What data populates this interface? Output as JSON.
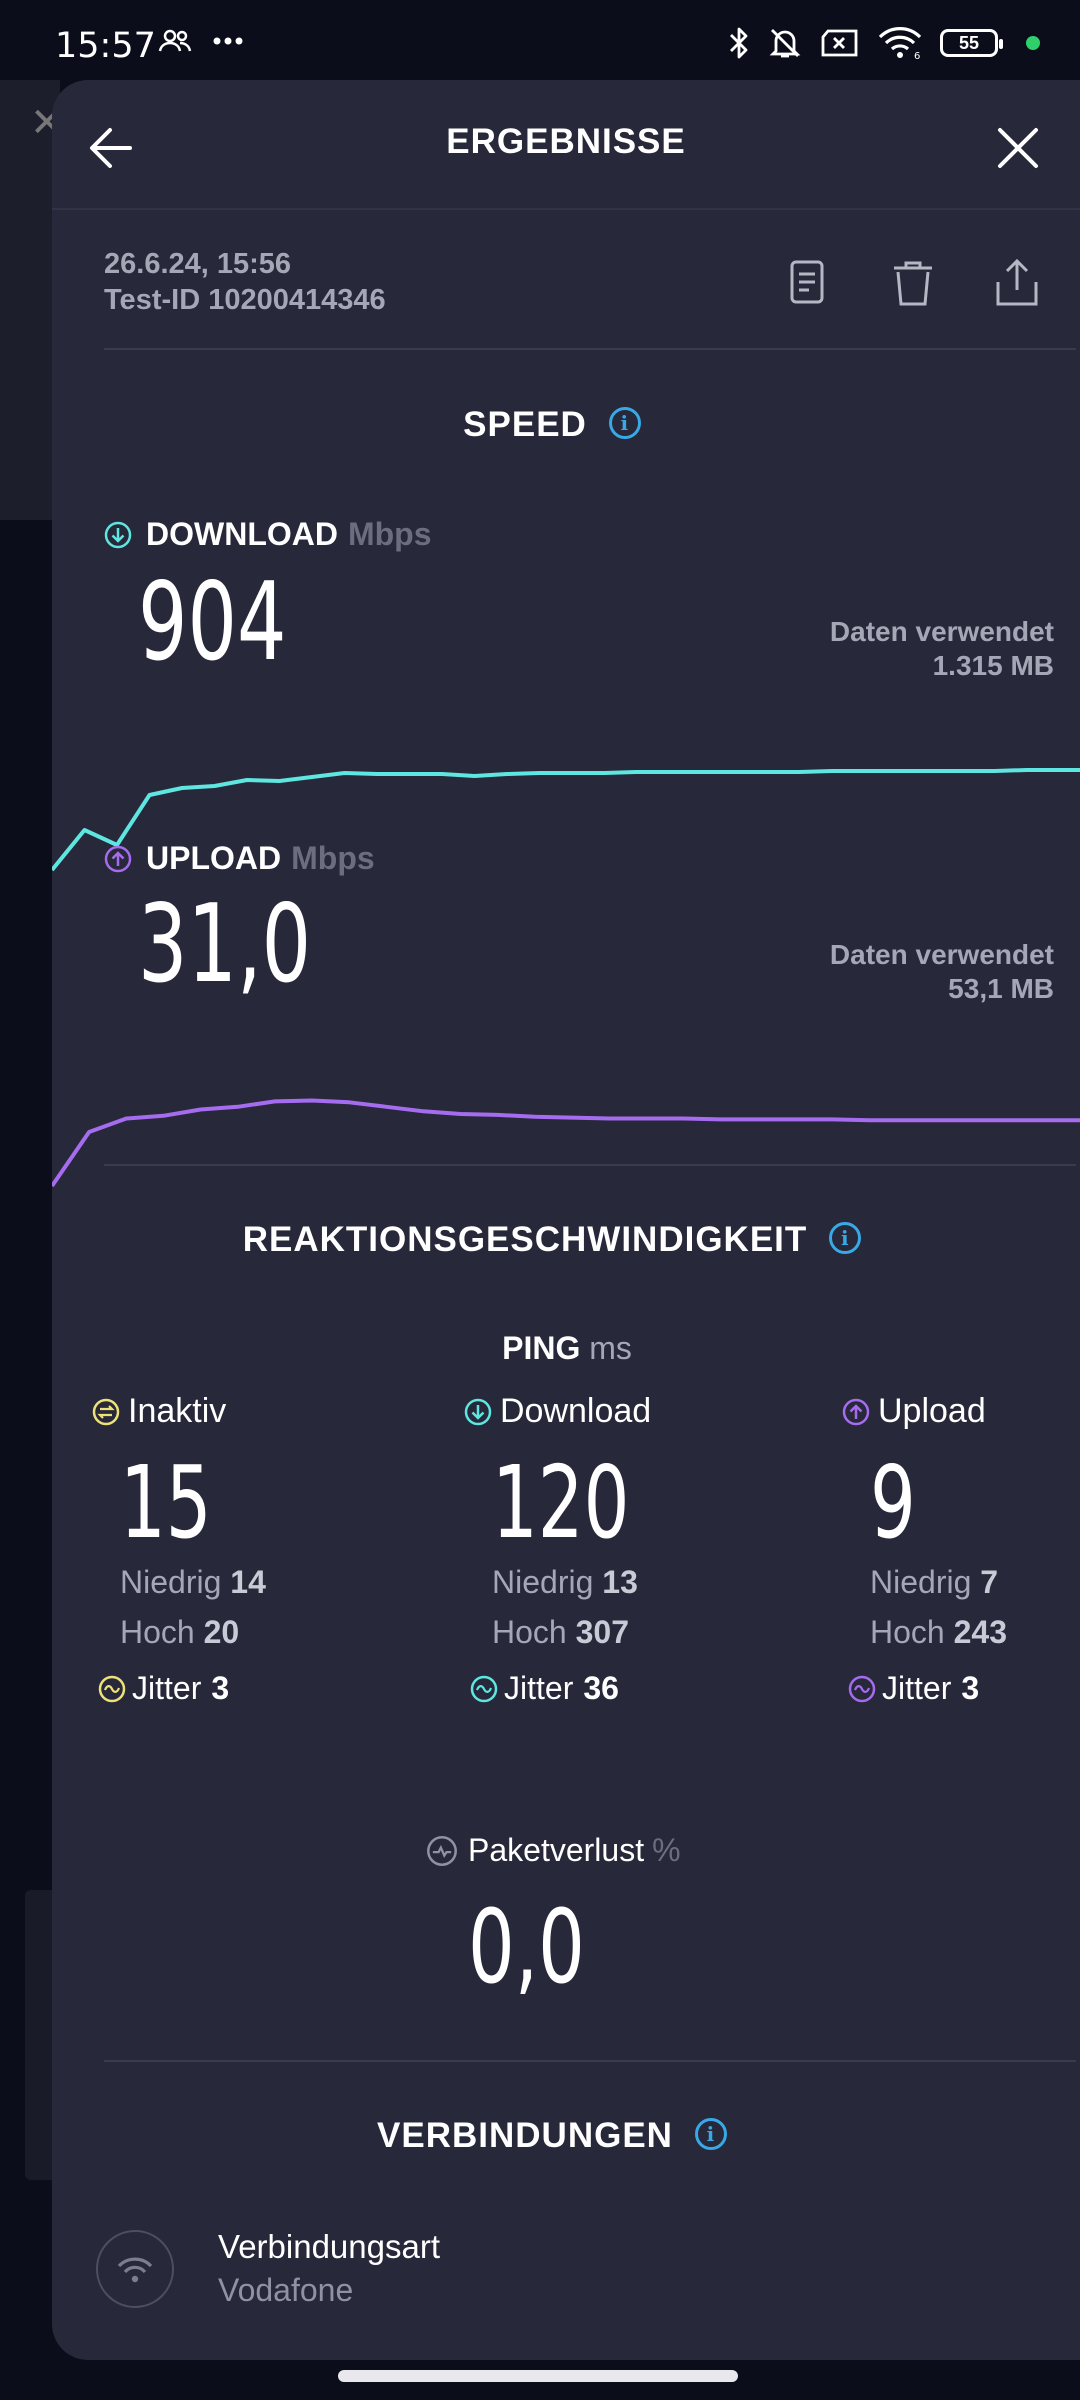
{
  "status_bar": {
    "time": "15:57",
    "battery": "55",
    "left_icons": [
      "people-icon",
      "more-dots-icon"
    ],
    "right_icons": [
      "bluetooth-icon",
      "bell-off-icon",
      "no-sim-icon",
      "wifi-icon",
      "battery-icon",
      "privacy-dot"
    ]
  },
  "header": {
    "title": "ERGEBNISSE"
  },
  "result": {
    "date": "26.6.24, 15:56",
    "test_id": "Test-ID 10200414346"
  },
  "speed": {
    "title": "SPEED",
    "download": {
      "label": "DOWNLOAD",
      "unit": "Mbps",
      "value": "904",
      "data_label": "Daten verwendet",
      "data_value": "1.315 MB",
      "color": "#5ee6e0",
      "curve": [
        0.0,
        0.4,
        0.25,
        0.75,
        0.82,
        0.84,
        0.9,
        0.89,
        0.93,
        0.97,
        0.96,
        0.96,
        0.96,
        0.94,
        0.96,
        0.97,
        0.97,
        0.97,
        0.98,
        0.98,
        0.98,
        0.98,
        0.98,
        0.98,
        0.99,
        0.99,
        0.99,
        0.99,
        0.99,
        0.99,
        1.0,
        1.0,
        1.0
      ]
    },
    "upload": {
      "label": "UPLOAD",
      "unit": "Mbps",
      "value": "31,0",
      "data_label": "Daten verwendet",
      "data_value": "53,1 MB",
      "color": "#a66cf0",
      "curve": [
        0.0,
        0.6,
        0.75,
        0.78,
        0.85,
        0.88,
        0.94,
        0.95,
        0.93,
        0.88,
        0.83,
        0.8,
        0.79,
        0.77,
        0.76,
        0.75,
        0.75,
        0.75,
        0.74,
        0.74,
        0.74,
        0.74,
        0.73,
        0.73,
        0.73,
        0.73,
        0.73,
        0.73,
        0.73
      ]
    }
  },
  "reaction": {
    "title": "REAKTIONSGESCHWINDIGKEIT",
    "ping_label": "PING",
    "ping_unit": "ms",
    "columns": [
      {
        "label": "Inaktiv",
        "value": "15",
        "low_label": "Niedrig",
        "low": "14",
        "high_label": "Hoch",
        "high": "20",
        "jitter_label": "Jitter",
        "jitter": "3",
        "color": "#ede27a"
      },
      {
        "label": "Download",
        "value": "120",
        "low_label": "Niedrig",
        "low": "13",
        "high_label": "Hoch",
        "high": "307",
        "jitter_label": "Jitter",
        "jitter": "36",
        "color": "#5ee6e0"
      },
      {
        "label": "Upload",
        "value": "9",
        "low_label": "Niedrig",
        "low": "7",
        "high_label": "Hoch",
        "high": "243",
        "jitter_label": "Jitter",
        "jitter": "3",
        "color": "#a66cf0"
      }
    ],
    "packet_loss_label": "Paketverlust",
    "packet_loss_unit": "%",
    "packet_loss_value": "0,0"
  },
  "connections": {
    "title": "VERBINDUNGEN",
    "type_label": "Verbindungsart",
    "type_value": "Vodafone"
  },
  "colors": {
    "info": "#38a9e6",
    "sheet": "#272839",
    "background": "#0c0d1a"
  }
}
